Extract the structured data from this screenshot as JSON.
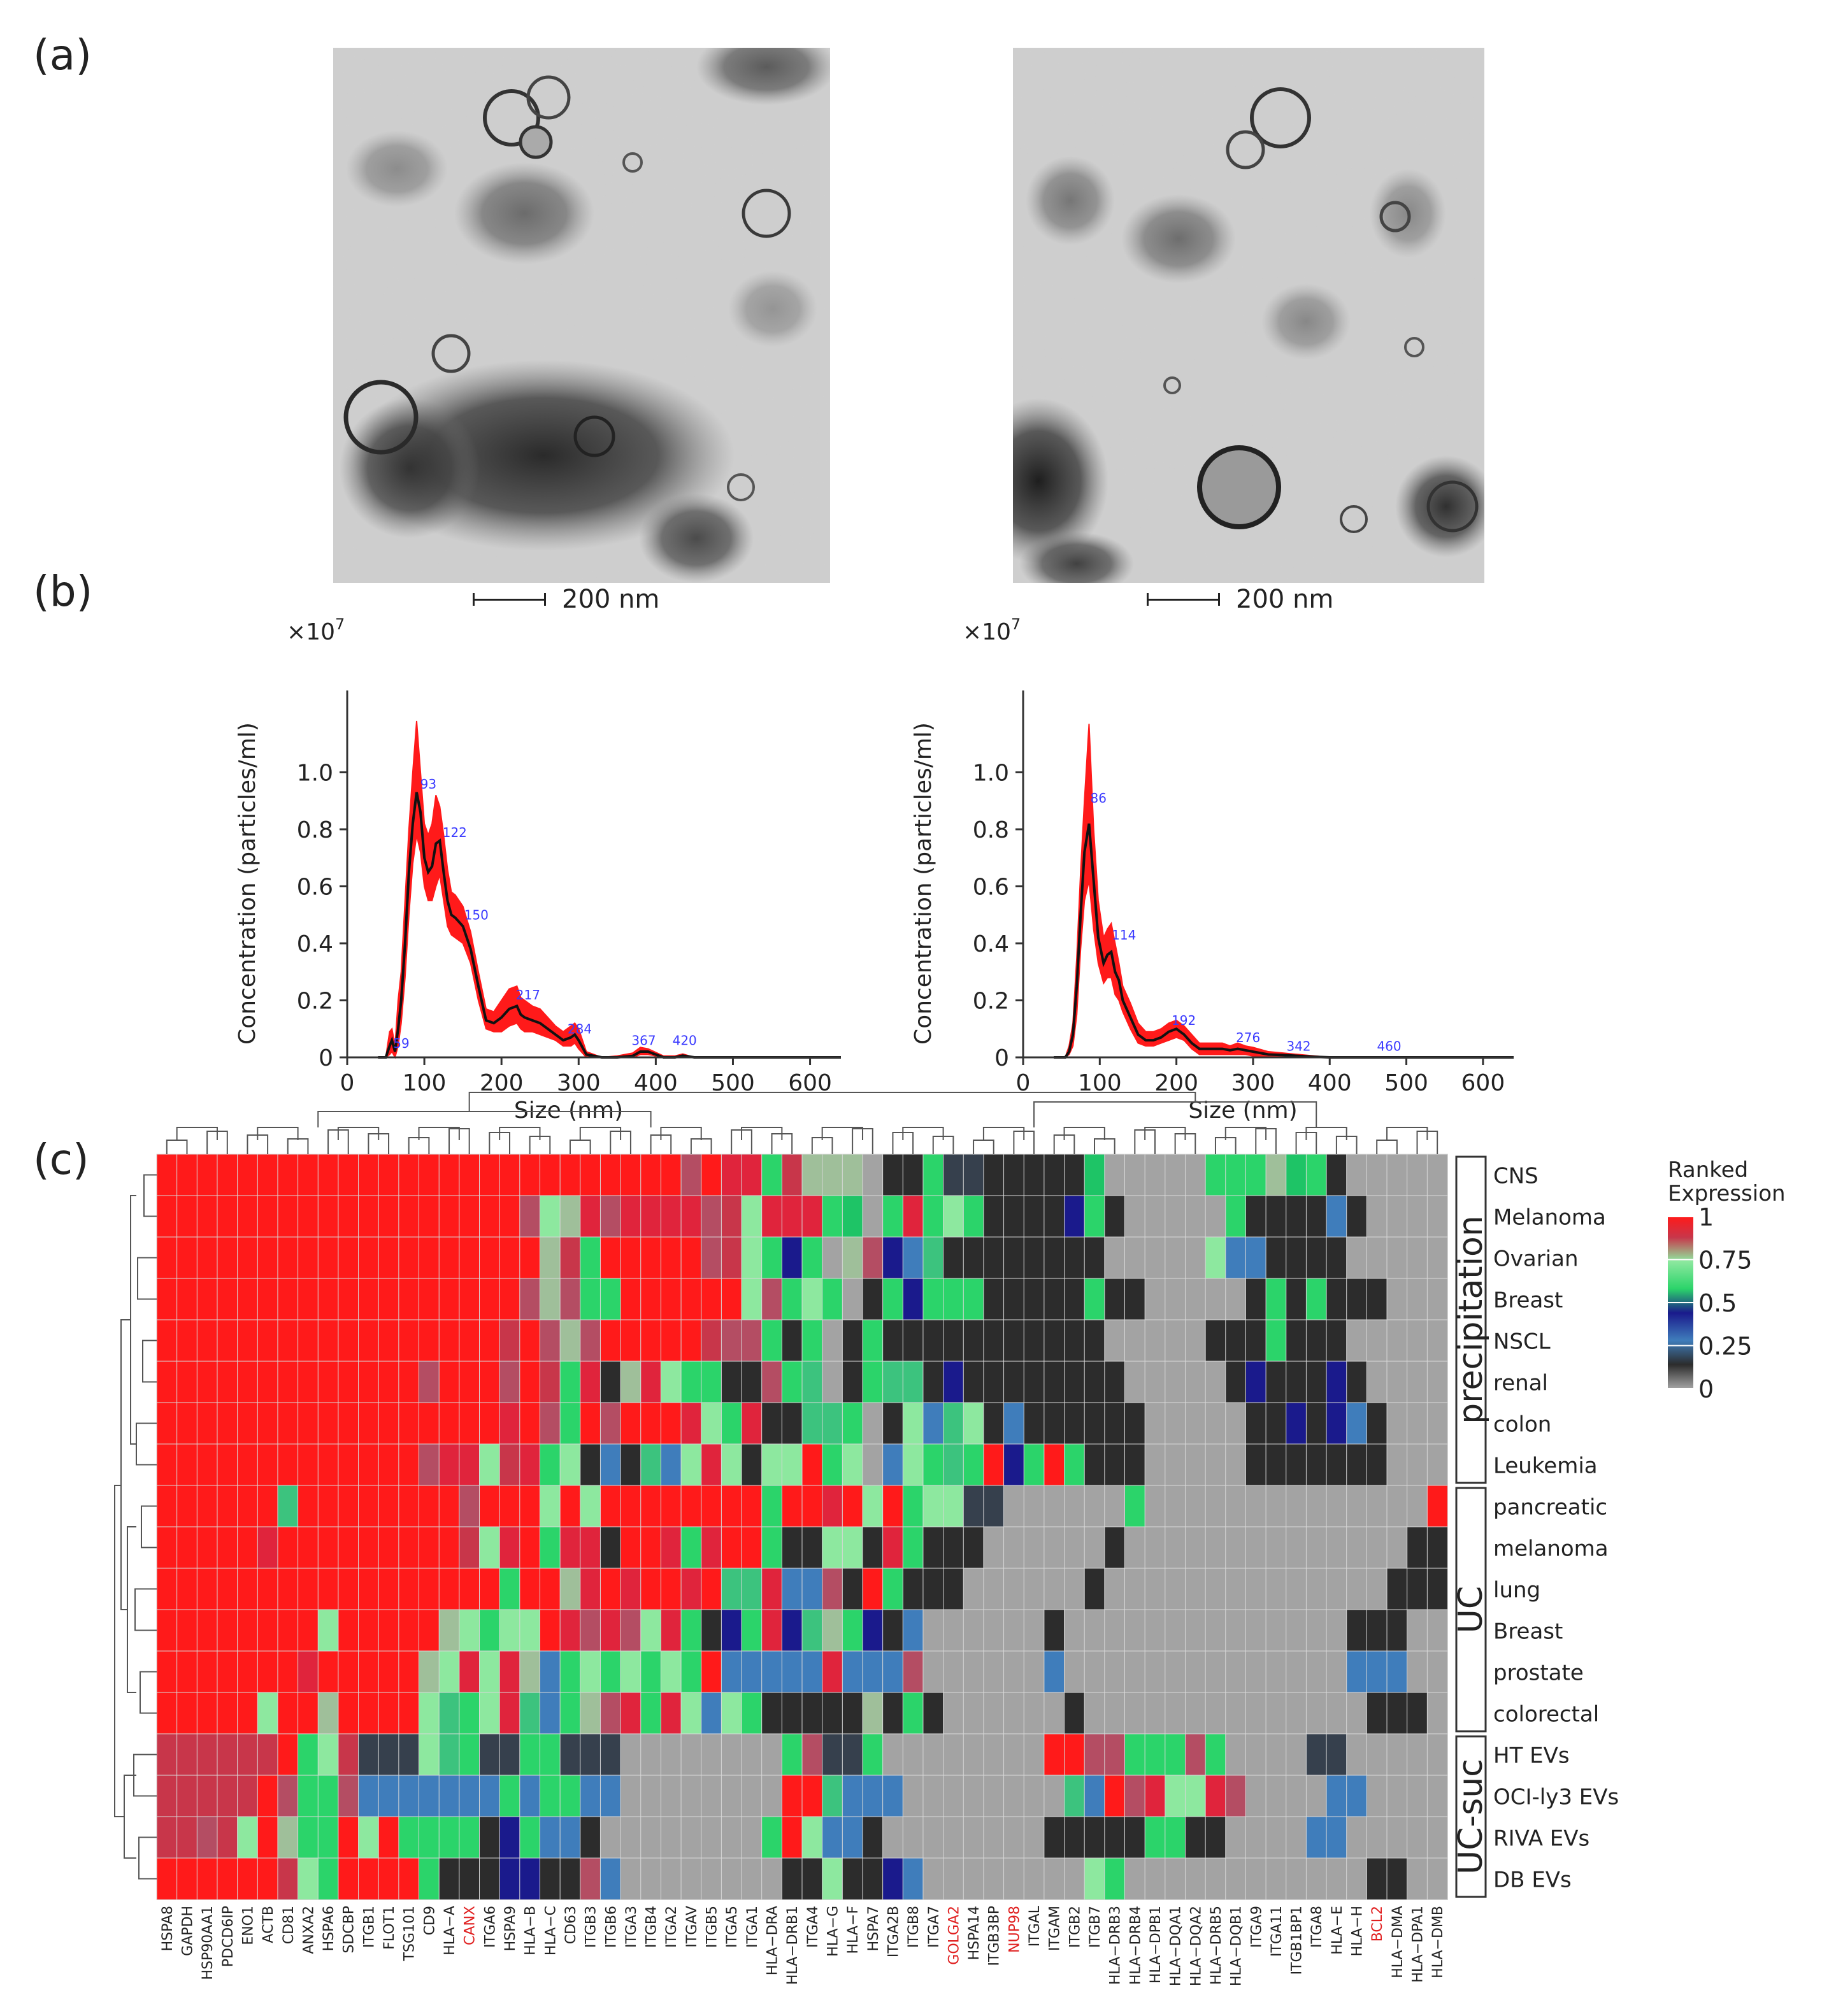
{
  "panel_labels": {
    "a": "(a)",
    "b": "(b)",
    "c": "(c)"
  },
  "tem_scale_bars": [
    "200 nm",
    "200 nm"
  ],
  "chart_data": [
    {
      "type": "line",
      "ylabel": "Concentration (particles/ml)",
      "xlabel": "Size (nm)",
      "y_multiplier": "×10",
      "y_exponent": "7",
      "xlim": [
        0,
        640
      ],
      "ylim": [
        0,
        1.22
      ],
      "xticks": [
        0,
        100,
        200,
        300,
        400,
        500,
        600
      ],
      "yticks": [
        0,
        0.2,
        0.4,
        0.6,
        0.8,
        1.0
      ],
      "ytick_labels": [
        "0",
        "0.2",
        "0.4",
        "0.6",
        "0.8",
        "1.0"
      ],
      "series": [
        {
          "name": "mean",
          "color": "#111111",
          "x": [
            40,
            50,
            55,
            58,
            62,
            66,
            70,
            75,
            80,
            85,
            90,
            95,
            100,
            105,
            110,
            115,
            120,
            125,
            130,
            135,
            140,
            150,
            160,
            170,
            180,
            190,
            200,
            210,
            220,
            225,
            230,
            240,
            250,
            260,
            270,
            280,
            290,
            295,
            300,
            310,
            330,
            350,
            370,
            380,
            390,
            410,
            425,
            435,
            450,
            480,
            520,
            640
          ],
          "y": [
            0,
            0,
            0.04,
            0.06,
            0.02,
            0.1,
            0.2,
            0.4,
            0.65,
            0.82,
            0.93,
            0.86,
            0.7,
            0.65,
            0.67,
            0.75,
            0.76,
            0.65,
            0.55,
            0.5,
            0.49,
            0.46,
            0.38,
            0.25,
            0.13,
            0.12,
            0.14,
            0.17,
            0.18,
            0.15,
            0.14,
            0.13,
            0.12,
            0.1,
            0.08,
            0.06,
            0.07,
            0.08,
            0.06,
            0.01,
            0,
            0,
            0.005,
            0.02,
            0.02,
            0,
            0,
            0.006,
            0,
            0,
            0,
            0
          ]
        },
        {
          "name": "± error",
          "color": "#ff1a1a",
          "upper": [
            0,
            0,
            0.09,
            0.1,
            0.04,
            0.2,
            0.3,
            0.55,
            0.8,
            1.0,
            1.18,
            1.0,
            0.82,
            0.78,
            0.82,
            0.92,
            0.88,
            0.78,
            0.66,
            0.58,
            0.57,
            0.53,
            0.44,
            0.3,
            0.17,
            0.16,
            0.2,
            0.24,
            0.25,
            0.21,
            0.2,
            0.18,
            0.17,
            0.14,
            0.11,
            0.09,
            0.11,
            0.12,
            0.1,
            0.02,
            0,
            0.005,
            0.015,
            0.035,
            0.03,
            0.005,
            0.005,
            0.012,
            0,
            0,
            0,
            0
          ],
          "lower": [
            0,
            0,
            0.01,
            0.02,
            0,
            0.04,
            0.12,
            0.28,
            0.5,
            0.68,
            0.78,
            0.72,
            0.6,
            0.55,
            0.55,
            0.6,
            0.64,
            0.55,
            0.46,
            0.43,
            0.42,
            0.4,
            0.33,
            0.2,
            0.1,
            0.09,
            0.09,
            0.11,
            0.12,
            0.1,
            0.09,
            0.09,
            0.08,
            0.07,
            0.06,
            0.04,
            0.04,
            0.05,
            0.03,
            0,
            0,
            0,
            0,
            0.01,
            0.01,
            0,
            0,
            0,
            0,
            0,
            0,
            0
          ]
        }
      ],
      "peak_labels": [
        {
          "x": 58,
          "y": 0.02,
          "text": "59"
        },
        {
          "x": 93,
          "y": 0.93,
          "text": "93"
        },
        {
          "x": 122,
          "y": 0.76,
          "text": "122"
        },
        {
          "x": 150,
          "y": 0.47,
          "text": "150"
        },
        {
          "x": 217,
          "y": 0.19,
          "text": "217"
        },
        {
          "x": 284,
          "y": 0.07,
          "text": "284"
        },
        {
          "x": 367,
          "y": 0.03,
          "text": "367"
        },
        {
          "x": 420,
          "y": 0.03,
          "text": "420"
        }
      ]
    },
    {
      "type": "line",
      "ylabel": "Concentration (particles/ml)",
      "xlabel": "Size (nm)",
      "y_multiplier": "×10",
      "y_exponent": "7",
      "xlim": [
        0,
        640
      ],
      "ylim": [
        0,
        1.22
      ],
      "xticks": [
        0,
        100,
        200,
        300,
        400,
        500,
        600
      ],
      "yticks": [
        0,
        0.2,
        0.4,
        0.6,
        0.8,
        1.0
      ],
      "ytick_labels": [
        "0",
        "0.2",
        "0.4",
        "0.6",
        "0.8",
        "1.0"
      ],
      "series": [
        {
          "name": "mean",
          "color": "#111111",
          "x": [
            40,
            55,
            60,
            65,
            70,
            75,
            80,
            86,
            92,
            98,
            105,
            110,
            115,
            120,
            125,
            130,
            140,
            150,
            160,
            170,
            180,
            190,
            200,
            210,
            220,
            230,
            240,
            250,
            260,
            270,
            280,
            290,
            300,
            320,
            340,
            360,
            380,
            400,
            460,
            640
          ],
          "y": [
            0,
            0,
            0.02,
            0.08,
            0.25,
            0.5,
            0.72,
            0.82,
            0.62,
            0.42,
            0.33,
            0.36,
            0.37,
            0.3,
            0.27,
            0.2,
            0.14,
            0.08,
            0.06,
            0.06,
            0.07,
            0.09,
            0.1,
            0.08,
            0.05,
            0.03,
            0.03,
            0.03,
            0.03,
            0.025,
            0.03,
            0.025,
            0.02,
            0.01,
            0.008,
            0.005,
            0.002,
            0,
            0,
            0
          ]
        },
        {
          "name": "± error",
          "color": "#ff1a1a",
          "upper": [
            0,
            0,
            0.04,
            0.12,
            0.35,
            0.65,
            0.9,
            1.17,
            0.8,
            0.55,
            0.42,
            0.45,
            0.47,
            0.4,
            0.33,
            0.25,
            0.19,
            0.12,
            0.09,
            0.09,
            0.1,
            0.12,
            0.13,
            0.11,
            0.08,
            0.05,
            0.05,
            0.05,
            0.05,
            0.04,
            0.05,
            0.04,
            0.035,
            0.02,
            0.015,
            0.01,
            0.005,
            0,
            0,
            0
          ],
          "lower": [
            0,
            0,
            0.01,
            0.04,
            0.15,
            0.38,
            0.55,
            0.62,
            0.45,
            0.33,
            0.26,
            0.28,
            0.28,
            0.22,
            0.2,
            0.16,
            0.1,
            0.05,
            0.04,
            0.04,
            0.05,
            0.06,
            0.07,
            0.06,
            0.03,
            0.01,
            0.01,
            0.01,
            0.01,
            0.01,
            0.01,
            0.01,
            0.005,
            0,
            0,
            0,
            0,
            0,
            0,
            0
          ]
        }
      ],
      "peak_labels": [
        {
          "x": 86,
          "y": 0.88,
          "text": "86"
        },
        {
          "x": 114,
          "y": 0.4,
          "text": "114"
        },
        {
          "x": 192,
          "y": 0.1,
          "text": "192"
        },
        {
          "x": 276,
          "y": 0.04,
          "text": "276"
        },
        {
          "x": 342,
          "y": 0.01,
          "text": "342"
        },
        {
          "x": 460,
          "y": 0.01,
          "text": "460"
        }
      ]
    },
    {
      "type": "heatmap",
      "legend_title": [
        "Ranked",
        "Expression"
      ],
      "legend_ticks": [
        "1",
        "0.75",
        "0.5",
        "0.25",
        "0"
      ],
      "columns": [
        "HSPA8",
        "GAPDH",
        "HSP90AA1",
        "PDCD6IP",
        "ENO1",
        "ACTB",
        "CD81",
        "ANXA2",
        "HSPA6",
        "SDCBP",
        "ITGB1",
        "FLOT1",
        "TSG101",
        "CD9",
        "HLA−A",
        "CANX",
        "ITGA6",
        "HSPA9",
        "HLA−B",
        "HLA−C",
        "CD63",
        "ITGB3",
        "ITGB6",
        "ITGA3",
        "ITGB4",
        "ITGA2",
        "ITGAV",
        "ITGB5",
        "ITGA5",
        "ITGA1",
        "HLA−DRA",
        "HLA−DRB1",
        "ITGA4",
        "HLA−G",
        "HLA−F",
        "HSPA7",
        "ITGA2B",
        "ITGB8",
        "ITGA7",
        "GOLGA2",
        "HSPA14",
        "ITGB3BP",
        "NUP98",
        "ITGAL",
        "ITGAM",
        "ITGB2",
        "ITGB7",
        "HLA−DRB3",
        "HLA−DRB4",
        "HLA−DPB1",
        "HLA−DQA1",
        "HLA−DQA2",
        "HLA−DRB5",
        "HLA−DQB1",
        "ITGA9",
        "ITGA11",
        "ITGB1BP1",
        "ITGA8",
        "HLA−E",
        "HLA−H",
        "BCL2",
        "HLA−DMA",
        "HLA−DPA1",
        "HLA−DMB"
      ],
      "red_columns": [
        "CANX",
        "GOLGA2",
        "NUP98",
        "BCL2"
      ],
      "rows": [
        "CNS",
        "Melanoma",
        "Ovarian",
        "Breast",
        "NSCL",
        "renal",
        "colon",
        "Leukemia",
        "pancreatic",
        "melanoma",
        "lung",
        "Breast",
        "prostate",
        "colorectal",
        "HT EVs",
        "OCI-ly3 EVs",
        "RIVA EVs",
        "DB EVs"
      ],
      "groups": [
        {
          "label": "precipitation",
          "rows": [
            0,
            7
          ]
        },
        {
          "label": "UC",
          "rows": [
            8,
            13
          ]
        },
        {
          "label": "UC-suc",
          "rows": [
            14,
            17
          ]
        }
      ]
    }
  ]
}
